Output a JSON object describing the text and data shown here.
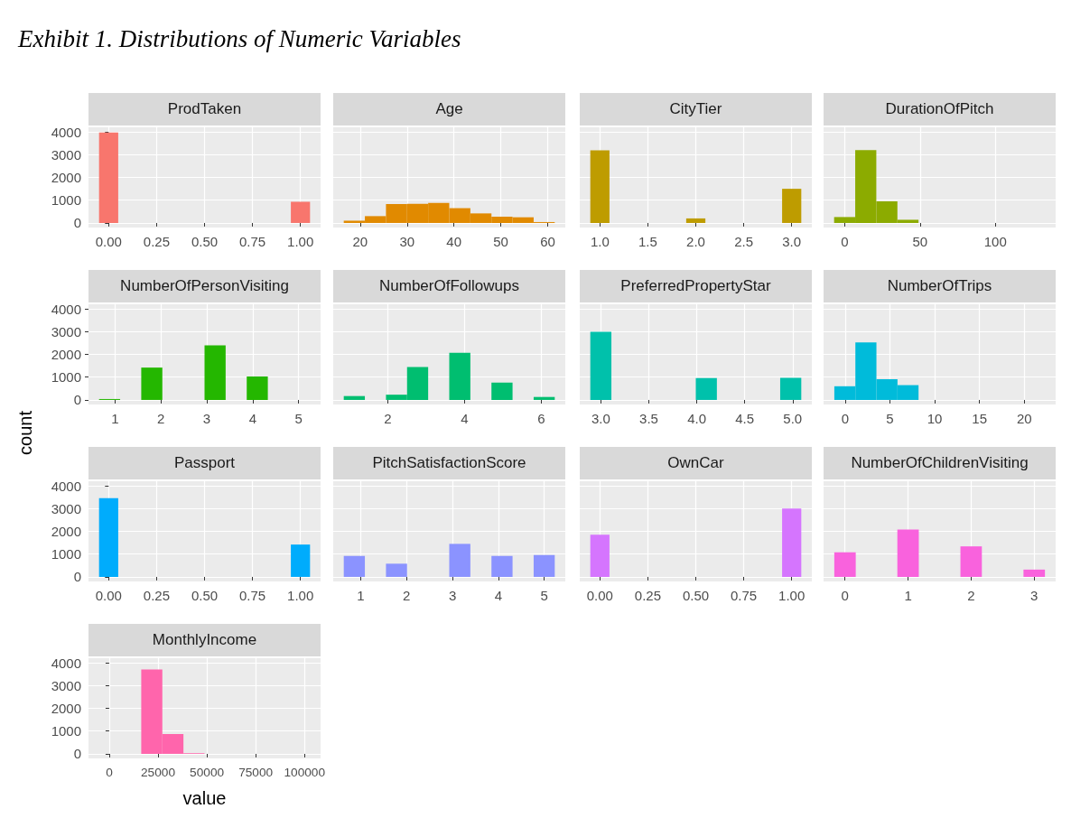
{
  "chart_data": [
    {
      "type": "histogram",
      "title": "ProdTaken",
      "annotations": [
        "Exhibit 1. Distributions of Numeric Variables"
      ],
      "color": "#f8766d",
      "bins": [
        -0.05,
        0.05,
        0.15,
        0.25,
        0.35,
        0.45,
        0.55,
        0.65,
        0.75,
        0.85,
        0.95,
        1.05
      ],
      "values": [
        3970,
        0,
        0,
        0,
        0,
        0,
        0,
        0,
        0,
        0,
        930
      ],
      "xlim": [
        -0.105,
        1.105
      ],
      "xticks": [
        {
          "value": 0,
          "label": "0.00"
        },
        {
          "value": 0.25,
          "label": "0.25"
        },
        {
          "value": 0.5,
          "label": "0.50"
        },
        {
          "value": 0.75,
          "label": "0.75"
        },
        {
          "value": 1,
          "label": "1.00"
        }
      ],
      "ylim": [
        -200,
        4200
      ],
      "yticks": [
        0,
        1000,
        2000,
        3000,
        4000
      ],
      "grid": true
    },
    {
      "type": "histogram",
      "title": "Age",
      "color": "#e18a00",
      "bins": [
        16.5,
        21,
        25.5,
        30,
        34.5,
        39,
        43.5,
        48,
        52.5,
        57,
        61.5
      ],
      "values": [
        100,
        300,
        830,
        840,
        880,
        650,
        420,
        280,
        250,
        40
      ],
      "xlim": [
        14.25,
        63.75
      ],
      "xticks": [
        20,
        30,
        40,
        50,
        60
      ],
      "ylim": [
        -200,
        4200
      ],
      "yticks": [
        0,
        1000,
        2000,
        3000,
        4000
      ],
      "grid": true,
      "tick_labels": "x"
    },
    {
      "type": "histogram",
      "title": "CityTier",
      "color": "#be9c00",
      "bins": [
        0.9,
        1.1,
        1.3,
        1.5,
        1.7,
        1.9,
        2.1,
        2.3,
        2.5,
        2.7,
        2.9,
        3.1
      ],
      "values": [
        3190,
        0,
        0,
        0,
        0,
        200,
        0,
        0,
        0,
        0,
        1500
      ],
      "xlim": [
        0.79,
        3.21
      ],
      "xticks": [
        {
          "value": 1,
          "label": "1.0"
        },
        1.5,
        {
          "value": 2,
          "label": "2.0"
        },
        2.5,
        {
          "value": 3,
          "label": "3.0"
        }
      ],
      "ylim": [
        -200,
        4200
      ],
      "yticks": [
        0,
        1000,
        2000,
        3000,
        4000
      ],
      "grid": true,
      "tick_labels": "x"
    },
    {
      "type": "histogram",
      "title": "DurationOfPitch",
      "color": "#8cab00",
      "bins": [
        -7,
        7,
        21,
        35,
        49,
        63,
        77,
        91,
        105,
        119,
        133
      ],
      "values": [
        260,
        3200,
        950,
        140,
        0,
        0,
        0,
        0,
        0,
        0
      ],
      "xlim": [
        -14,
        140
      ],
      "xticks": [
        0,
        50,
        100
      ],
      "ylim": [
        -200,
        4200
      ],
      "yticks": [
        0,
        1000,
        2000,
        3000,
        4000
      ],
      "grid": true,
      "tick_labels": "x"
    },
    {
      "type": "histogram",
      "title": "NumberOfPersonVisiting",
      "ylabel": "count",
      "color": "#24b700",
      "bins": [
        0.65,
        1.11,
        1.57,
        2.03,
        2.49,
        2.95,
        3.41,
        3.87,
        4.33,
        4.79,
        5.25
      ],
      "values": [
        40,
        0,
        1420,
        0,
        0,
        2400,
        0,
        1030,
        0,
        0
      ],
      "xlim": [
        0.42,
        5.48
      ],
      "xticks": [
        1,
        2,
        3,
        4,
        5
      ],
      "ylim": [
        -200,
        4200
      ],
      "yticks": [
        0,
        1000,
        2000,
        3000,
        4000
      ],
      "grid": true
    },
    {
      "type": "histogram",
      "title": "NumberOfFollowups",
      "color": "#00be70",
      "bins": [
        0.85,
        1.4,
        1.95,
        2.5,
        3.05,
        3.6,
        4.15,
        4.7,
        5.25,
        5.8,
        6.35
      ],
      "values": [
        170,
        0,
        230,
        1450,
        0,
        2070,
        0,
        760,
        0,
        130
      ],
      "xlim": [
        0.575,
        6.625
      ],
      "xticks": [
        2,
        4,
        6
      ],
      "ylim": [
        -200,
        4200
      ],
      "yticks": [
        0,
        1000,
        2000,
        3000,
        4000
      ],
      "grid": true,
      "tick_labels": "x"
    },
    {
      "type": "histogram",
      "title": "PreferredPropertyStar",
      "color": "#00c1ab",
      "bins": [
        2.89,
        3.11,
        3.33,
        3.55,
        3.77,
        3.99,
        4.21,
        4.43,
        4.65,
        4.87,
        5.09
      ],
      "values": [
        2990,
        0,
        0,
        0,
        0,
        960,
        0,
        0,
        0,
        970
      ],
      "xlim": [
        2.78,
        5.2
      ],
      "xticks": [
        {
          "value": 3,
          "label": "3.0"
        },
        3.5,
        {
          "value": 4,
          "label": "4.0"
        },
        4.5,
        {
          "value": 5,
          "label": "5.0"
        }
      ],
      "ylim": [
        -200,
        4200
      ],
      "yticks": [
        0,
        1000,
        2000,
        3000,
        4000
      ],
      "grid": true,
      "tick_labels": "x"
    },
    {
      "type": "histogram",
      "title": "NumberOfTrips",
      "color": "#00bbda",
      "bins": [
        -1.2,
        1.15,
        3.5,
        5.85,
        8.2,
        10.55,
        12.9,
        15.25,
        17.6,
        19.95,
        22.3
      ],
      "values": [
        600,
        2530,
        910,
        650,
        0,
        0,
        0,
        0,
        0,
        0
      ],
      "xlim": [
        -2.4,
        23.5
      ],
      "xticks": [
        0,
        5,
        10,
        15,
        20
      ],
      "ylim": [
        -200,
        4200
      ],
      "yticks": [
        0,
        1000,
        2000,
        3000,
        4000
      ],
      "grid": true,
      "tick_labels": "x"
    },
    {
      "type": "histogram",
      "title": "Passport",
      "color": "#00acfc",
      "bins": [
        -0.05,
        0.05,
        0.15,
        0.25,
        0.35,
        0.45,
        0.55,
        0.65,
        0.75,
        0.85,
        0.95,
        1.05
      ],
      "values": [
        3460,
        0,
        0,
        0,
        0,
        0,
        0,
        0,
        0,
        0,
        1420
      ],
      "xlim": [
        -0.105,
        1.105
      ],
      "xticks": [
        {
          "value": 0,
          "label": "0.00"
        },
        {
          "value": 0.25,
          "label": "0.25"
        },
        {
          "value": 0.5,
          "label": "0.50"
        },
        {
          "value": 0.75,
          "label": "0.75"
        },
        {
          "value": 1,
          "label": "1.00"
        }
      ],
      "ylim": [
        -200,
        4200
      ],
      "yticks": [
        0,
        1000,
        2000,
        3000,
        4000
      ],
      "grid": true
    },
    {
      "type": "histogram",
      "title": "PitchSatisfactionScore",
      "color": "#8b93ff",
      "bins": [
        0.63,
        1.09,
        1.55,
        2.01,
        2.47,
        2.93,
        3.39,
        3.85,
        4.31,
        4.77,
        5.23
      ],
      "values": [
        920,
        0,
        580,
        0,
        0,
        1450,
        0,
        920,
        0,
        960
      ],
      "xlim": [
        0.4,
        5.46
      ],
      "xticks": [
        1,
        2,
        3,
        4,
        5
      ],
      "ylim": [
        -200,
        4200
      ],
      "yticks": [
        0,
        1000,
        2000,
        3000,
        4000
      ],
      "grid": true,
      "tick_labels": "x"
    },
    {
      "type": "histogram",
      "title": "OwnCar",
      "color": "#d575fe",
      "bins": [
        -0.05,
        0.05,
        0.15,
        0.25,
        0.35,
        0.45,
        0.55,
        0.65,
        0.75,
        0.85,
        0.95,
        1.05
      ],
      "values": [
        1850,
        0,
        0,
        0,
        0,
        0,
        0,
        0,
        0,
        0,
        3000
      ],
      "xlim": [
        -0.105,
        1.105
      ],
      "xticks": [
        {
          "value": 0,
          "label": "0.00"
        },
        {
          "value": 0.25,
          "label": "0.25"
        },
        {
          "value": 0.5,
          "label": "0.50"
        },
        {
          "value": 0.75,
          "label": "0.75"
        },
        {
          "value": 1,
          "label": "1.00"
        }
      ],
      "ylim": [
        -200,
        4200
      ],
      "yticks": [
        0,
        1000,
        2000,
        3000,
        4000
      ],
      "grid": true,
      "tick_labels": "x"
    },
    {
      "type": "histogram",
      "title": "NumberOfChildrenVisiting",
      "color": "#f962dd",
      "bins": [
        -0.17,
        0.17,
        0.83,
        1.17,
        1.83,
        2.17,
        2.83,
        3.17
      ],
      "values": [
        1080,
        0,
        2080,
        0,
        1340,
        0,
        320
      ],
      "xlim": [
        -0.34,
        3.34
      ],
      "xticks": [
        0,
        1,
        2,
        3
      ],
      "ylim": [
        -200,
        4200
      ],
      "yticks": [
        0,
        1000,
        2000,
        3000,
        4000
      ],
      "grid": true,
      "tick_labels": "x"
    },
    {
      "type": "histogram",
      "title": "MonthlyIncome",
      "xlabel": "value",
      "color": "#ff65ac",
      "bins": [
        -5200,
        5600,
        16400,
        27200,
        38000,
        48800,
        59600,
        70400,
        81200,
        92000,
        102800
      ],
      "values": [
        0,
        0,
        3700,
        870,
        30,
        0,
        0,
        0,
        0,
        0
      ],
      "xlim": [
        -10600,
        108200
      ],
      "xticks": [
        0,
        25000,
        50000,
        75000,
        100000
      ],
      "ylim": [
        -200,
        4200
      ],
      "yticks": [
        0,
        1000,
        2000,
        3000,
        4000
      ],
      "grid": true
    }
  ]
}
